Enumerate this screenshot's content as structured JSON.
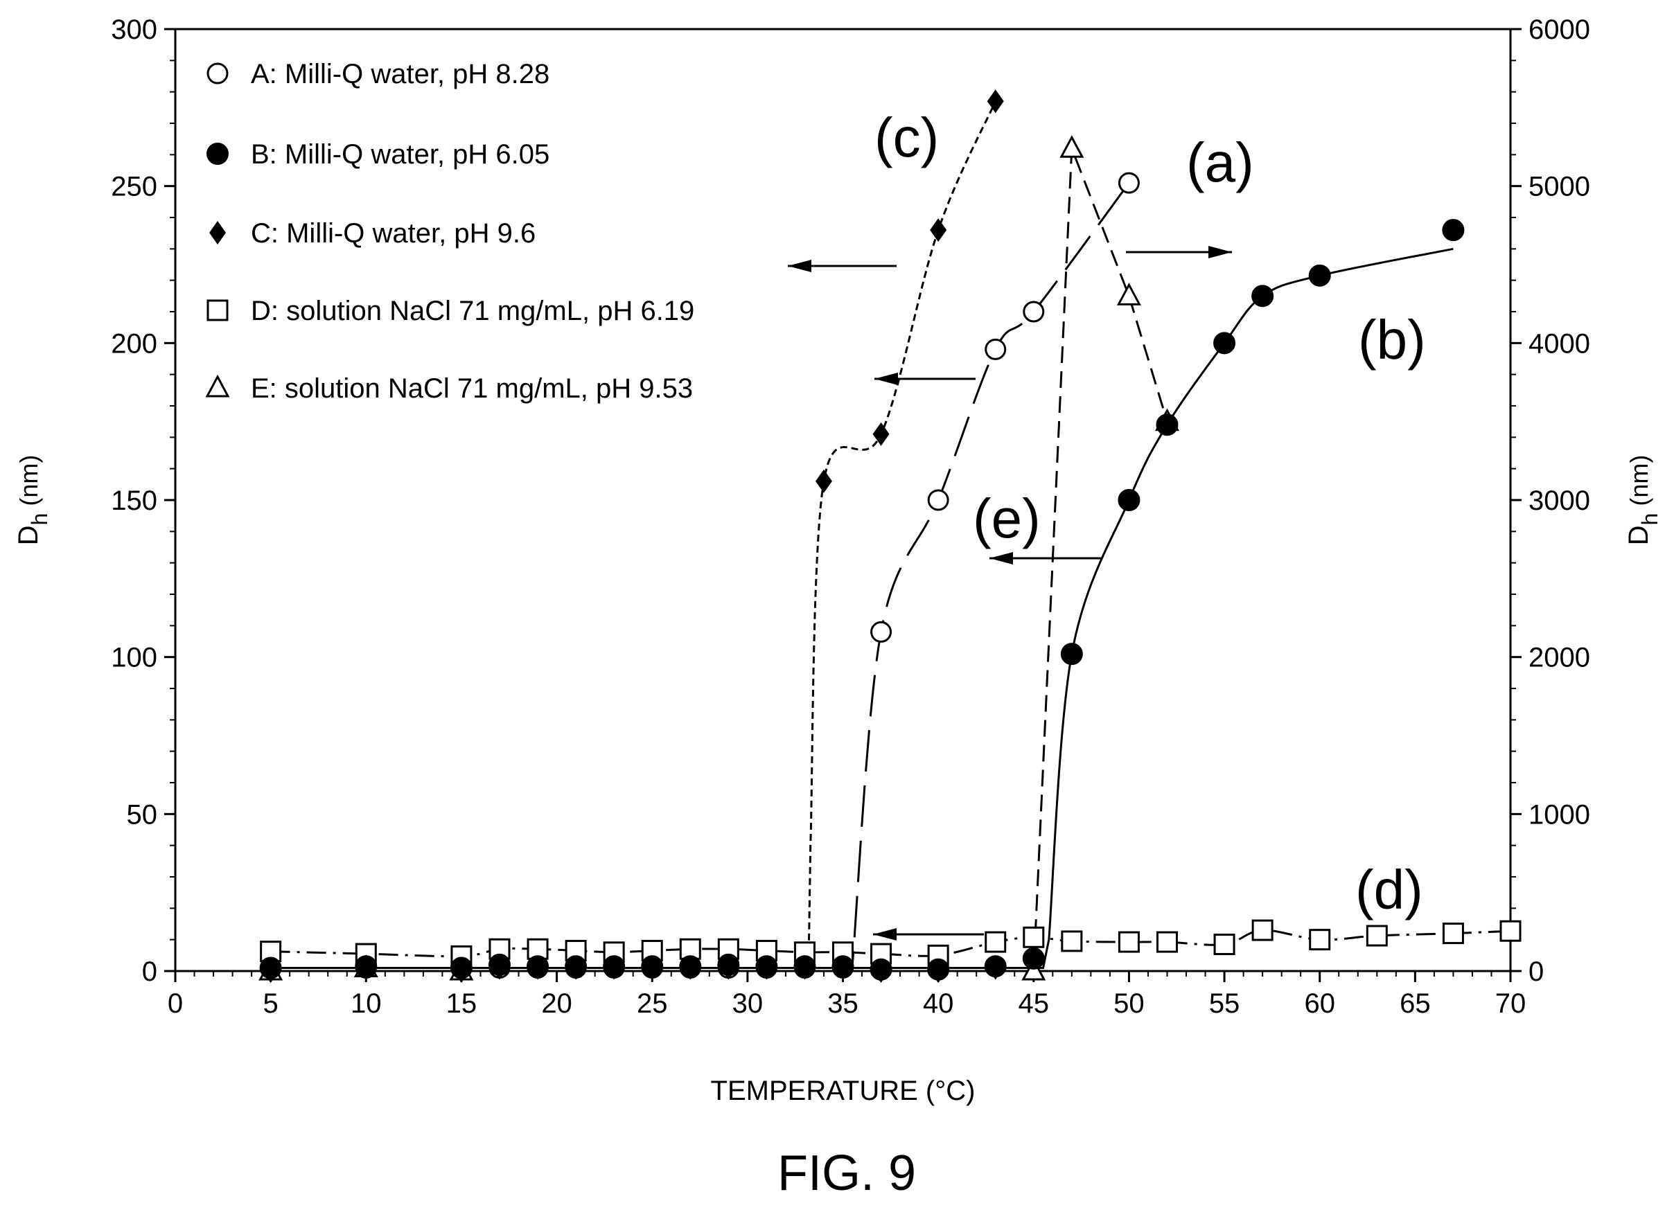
{
  "figure": {
    "caption": "FIG. 9"
  },
  "chart_data": {
    "type": "scatter",
    "xlabel": "TEMPERATURE (°C)",
    "ylabel_left": {
      "main": "D",
      "sub": "h",
      "unit": " (nm)"
    },
    "ylabel_right": {
      "main": "D",
      "sub": "h",
      "unit": " (nm)"
    },
    "xlim": [
      0,
      70
    ],
    "ylim_left": [
      0,
      300
    ],
    "ylim_right": [
      0,
      6000
    ],
    "xticks": [
      "0",
      "5",
      "10",
      "15",
      "20",
      "25",
      "30",
      "35",
      "40",
      "45",
      "50",
      "55",
      "60",
      "65",
      "70"
    ],
    "yticks_left": [
      "0",
      "50",
      "100",
      "150",
      "200",
      "250",
      "300"
    ],
    "yticks_right": [
      "0",
      "1000",
      "2000",
      "3000",
      "4000",
      "5000",
      "6000"
    ],
    "grid": false,
    "legend_position": "top-left",
    "series": [
      {
        "id": "A",
        "name": "A: Milli-Q water, pH 8.28",
        "curve_label": "(a)",
        "marker": "circle-open",
        "line": "long-dash",
        "axis": "left",
        "x": [
          5,
          10,
          15,
          17,
          19,
          21,
          23,
          25,
          27,
          29,
          31,
          33,
          35,
          37,
          40,
          43,
          45,
          50
        ],
        "y": [
          1,
          1,
          1,
          1,
          1,
          1,
          1,
          1,
          1,
          1,
          1,
          1,
          1,
          108,
          150,
          198,
          210,
          251
        ]
      },
      {
        "id": "B",
        "name": "B: Milli-Q water, pH 6.05",
        "curve_label": "(b)",
        "marker": "circle-filled",
        "line": "solid",
        "axis": "right",
        "x": [
          5,
          10,
          15,
          17,
          19,
          21,
          23,
          25,
          27,
          29,
          31,
          33,
          35,
          37,
          40,
          43,
          45,
          47,
          50,
          52,
          55,
          57,
          60,
          67
        ],
        "y": [
          20,
          30,
          20,
          40,
          30,
          30,
          30,
          30,
          30,
          40,
          30,
          30,
          30,
          10,
          10,
          30,
          80,
          2020,
          3000,
          3480,
          4000,
          4300,
          4430,
          4720
        ]
      },
      {
        "id": "C",
        "name": "C: Milli-Q water, pH 9.6",
        "curve_label": "(c)",
        "marker": "diamond-filled",
        "line": "short-dash",
        "axis": "left",
        "x": [
          5,
          10,
          15,
          17,
          19,
          21,
          23,
          25,
          27,
          29,
          31,
          33,
          35,
          37,
          40,
          43
        ],
        "y": [
          0,
          1,
          0,
          1,
          1,
          1,
          1,
          1,
          1,
          1,
          1,
          1,
          1,
          0,
          0,
          1
        ],
        "x_rise": [
          34,
          37,
          40,
          43
        ],
        "y_rise": [
          156,
          171,
          236,
          277
        ]
      },
      {
        "id": "D",
        "name": "D: solution NaCl 71 mg/mL, pH 6.19",
        "curve_label": "(d)",
        "marker": "square-open",
        "line": "dash-dot",
        "axis": "right",
        "x": [
          5,
          10,
          15,
          17,
          19,
          21,
          23,
          25,
          27,
          29,
          31,
          33,
          35,
          37,
          40,
          43,
          45,
          47,
          50,
          52,
          55,
          57,
          60,
          63,
          67,
          70
        ],
        "y": [
          125,
          110,
          95,
          140,
          140,
          130,
          120,
          130,
          140,
          140,
          130,
          120,
          120,
          110,
          100,
          185,
          215,
          190,
          185,
          185,
          170,
          260,
          200,
          225,
          240,
          255
        ]
      },
      {
        "id": "E",
        "name": "E: solution NaCl 71 mg/mL, pH 9.53",
        "curve_label": "(e)",
        "marker": "triangle-open",
        "line": "medium-dash",
        "axis": "left",
        "x": [
          5,
          10,
          15,
          45,
          47,
          50,
          52
        ],
        "y": [
          0,
          1,
          0,
          0,
          262,
          215,
          175
        ]
      }
    ]
  }
}
